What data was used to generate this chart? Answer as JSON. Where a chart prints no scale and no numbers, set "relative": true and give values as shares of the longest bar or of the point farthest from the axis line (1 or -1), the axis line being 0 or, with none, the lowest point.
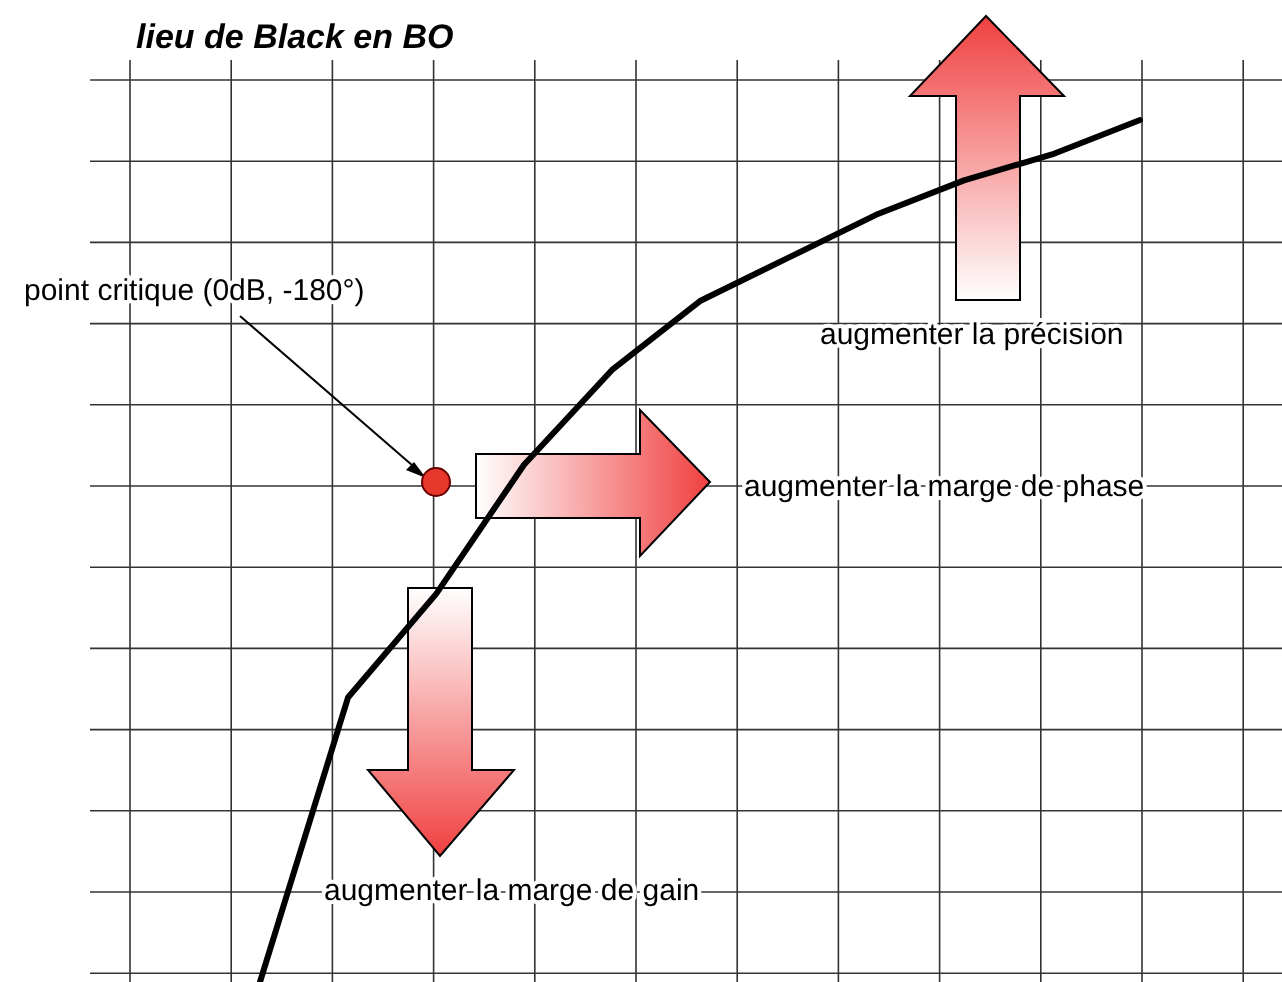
{
  "chart_data": {
    "type": "line",
    "title": "lieu de Black en BO",
    "relative": true,
    "grid": true,
    "marker": "none",
    "line_style": "solid",
    "categories": [
      null,
      null,
      null,
      null,
      null,
      null,
      null,
      null,
      null,
      null,
      null
    ],
    "series": [
      {
        "color": "#000000",
        "values": [
          0,
          0.33,
          0.45,
          0.6,
          0.71,
          0.79,
          0.84,
          0.89,
          0.93,
          0.96,
          1
        ]
      }
    ],
    "annotations": [
      "point critique (0dB, -180°)",
      "augmenter la précision",
      "augmenter la marge de phase",
      "augmenter la marge de gain"
    ]
  }
}
